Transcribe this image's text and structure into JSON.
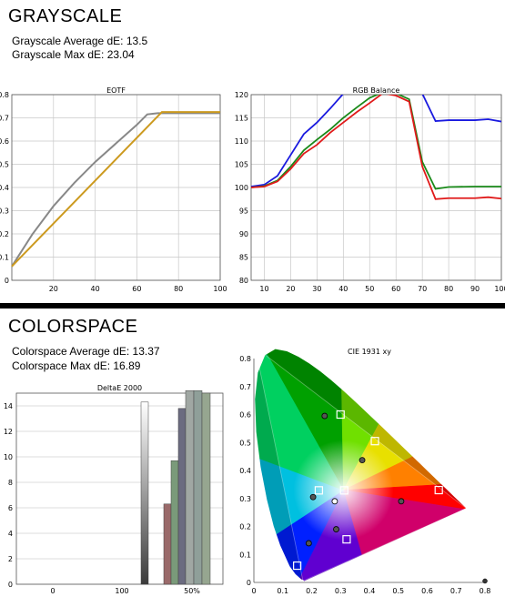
{
  "grayscale": {
    "title": "GRAYSCALE",
    "stats": [
      "Grayscale Average dE: 13.5",
      "Grayscale Max dE: 23.04"
    ]
  },
  "colorspace": {
    "title": "COLORSPACE",
    "stats": [
      "Colorspace Average dE: 13.37",
      "Colorspace Max dE: 16.89"
    ]
  },
  "chart_data": [
    {
      "id": "eotf",
      "type": "line",
      "title": "EOTF",
      "xlim": [
        0,
        100
      ],
      "ylim": [
        0,
        0.8
      ],
      "xticks": [
        20,
        40,
        60,
        80,
        100
      ],
      "yticks": [
        0,
        0.1,
        0.2,
        0.3,
        0.4,
        0.5,
        0.6,
        0.7,
        0.8
      ],
      "ytick_labels": [
        "0",
        "0.1",
        "0.2",
        "0.3",
        "0.4",
        "0.5",
        "0.6",
        "0.7",
        "0.8"
      ],
      "series": [
        {
          "color": "#888888",
          "x": [
            0,
            10,
            20,
            30,
            40,
            50,
            60,
            65,
            70,
            80,
            90,
            100
          ],
          "y": [
            0.06,
            0.2,
            0.32,
            0.42,
            0.51,
            0.59,
            0.67,
            0.715,
            0.72,
            0.72,
            0.72,
            0.72
          ]
        },
        {
          "color": "#cc9a1f",
          "x": [
            0,
            72,
            100
          ],
          "y": [
            0.06,
            0.725,
            0.725
          ]
        }
      ]
    },
    {
      "id": "rgb",
      "type": "line",
      "title": "RGB Balance",
      "xlim": [
        5,
        100
      ],
      "ylim": [
        80,
        120
      ],
      "xticks": [
        10,
        20,
        30,
        40,
        50,
        60,
        70,
        80,
        90,
        100
      ],
      "yticks": [
        80,
        85,
        90,
        95,
        100,
        105,
        110,
        115,
        120
      ],
      "series": [
        {
          "color": "#1a1adf",
          "x": [
            5,
            10,
            15,
            20,
            25,
            30,
            35,
            40,
            45,
            50,
            55,
            60,
            65,
            70,
            75,
            80,
            90,
            95,
            100
          ],
          "y": [
            100.2,
            100.6,
            102.5,
            107,
            111.5,
            114,
            117,
            120.2,
            120.2,
            120.2,
            120.2,
            120.2,
            120.2,
            120.2,
            114.3,
            114.5,
            114.5,
            114.7,
            114.2
          ]
        },
        {
          "color": "#1a8a1a",
          "x": [
            5,
            10,
            15,
            20,
            25,
            30,
            35,
            40,
            45,
            50,
            55,
            60,
            65,
            70,
            75,
            80,
            90,
            95,
            100
          ],
          "y": [
            100,
            100.3,
            101.5,
            104.5,
            108,
            110.3,
            112.5,
            115,
            117.2,
            119.3,
            120.5,
            120.3,
            119,
            105.5,
            99.7,
            100.1,
            100.2,
            100.2,
            100.2
          ]
        },
        {
          "color": "#e01a1a",
          "x": [
            5,
            10,
            15,
            20,
            25,
            30,
            35,
            40,
            45,
            50,
            55,
            60,
            65,
            70,
            75,
            80,
            90,
            95,
            100
          ],
          "y": [
            100,
            100.2,
            101.3,
            104,
            107.3,
            109.2,
            111.8,
            114,
            116.2,
            118.2,
            120.3,
            119.8,
            118.5,
            104.5,
            97.5,
            97.7,
            97.7,
            97.9,
            97.6
          ]
        }
      ]
    },
    {
      "id": "deltae",
      "type": "bar",
      "title": "DeltaE 2000",
      "ylim": [
        0,
        15
      ],
      "yticks": [
        0,
        2,
        4,
        6,
        8,
        10,
        12,
        14
      ],
      "xtick_labels": [
        "0",
        "100",
        "50%"
      ],
      "values": [
        14.3,
        6.3,
        9.7,
        13.8,
        15.2,
        15.2,
        15.0
      ],
      "bar_colors": [
        "#f2f2f2",
        "#9a6a6a",
        "#7a9a7a",
        "#6b6b80",
        "#a0a7a3",
        "#8f9f99",
        "#96a690"
      ]
    },
    {
      "id": "cie",
      "type": "scatter",
      "title": "CIE 1931 xy",
      "xlim": [
        0,
        0.8
      ],
      "ylim": [
        0,
        0.8
      ],
      "xticks": [
        0,
        0.1,
        0.2,
        0.3,
        0.4,
        0.5,
        0.6,
        0.7,
        0.8
      ],
      "yticks": [
        0,
        0.1,
        0.2,
        0.3,
        0.4,
        0.5,
        0.6,
        0.7,
        0.8
      ],
      "gamut_triangle": [
        [
          0.735,
          0.265
        ],
        [
          0.17,
          0.005
        ],
        [
          0.005,
          0.84
        ]
      ],
      "targets": [
        [
          0.64,
          0.33
        ],
        [
          0.3,
          0.6
        ],
        [
          0.15,
          0.06
        ],
        [
          0.225,
          0.329
        ],
        [
          0.321,
          0.154
        ],
        [
          0.419,
          0.505
        ],
        [
          0.3127,
          0.329
        ]
      ],
      "measured": [
        [
          0.51,
          0.29
        ],
        [
          0.245,
          0.595
        ],
        [
          0.19,
          0.14
        ],
        [
          0.205,
          0.305
        ],
        [
          0.285,
          0.19
        ],
        [
          0.375,
          0.437
        ],
        [
          0.28,
          0.29
        ]
      ]
    }
  ]
}
